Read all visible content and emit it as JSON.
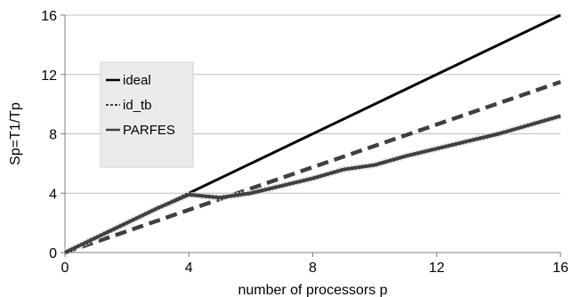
{
  "chart_data": {
    "type": "line",
    "xlabel": "number of processors p",
    "ylabel": "Sp=T1/Tp",
    "xlim": [
      0,
      16
    ],
    "ylim": [
      0,
      16
    ],
    "xticks": [
      0,
      4,
      8,
      12,
      16
    ],
    "yticks": [
      0,
      4,
      8,
      12,
      16
    ],
    "grid": "horizontal",
    "legend": "upper-left, inside plot",
    "series": [
      {
        "name": "ideal",
        "style": "solid",
        "color": "#000000",
        "x": [
          0,
          4,
          8,
          12,
          16
        ],
        "y": [
          0,
          4,
          8,
          12,
          16
        ]
      },
      {
        "name": "id_tb",
        "style": "dashed",
        "color": "#404040",
        "x": [
          0,
          16
        ],
        "y": [
          0,
          11.5
        ]
      },
      {
        "name": "PARFES",
        "style": "solid",
        "color": "#404040",
        "x": [
          0,
          1,
          2,
          3,
          4,
          5,
          6,
          7,
          8,
          9,
          10,
          11,
          12,
          13,
          14,
          15,
          16
        ],
        "y": [
          0,
          1,
          2,
          3,
          3.9,
          3.7,
          4.0,
          4.5,
          5.0,
          5.6,
          5.9,
          6.5,
          7.0,
          7.5,
          8.0,
          8.6,
          9.2
        ]
      }
    ]
  }
}
